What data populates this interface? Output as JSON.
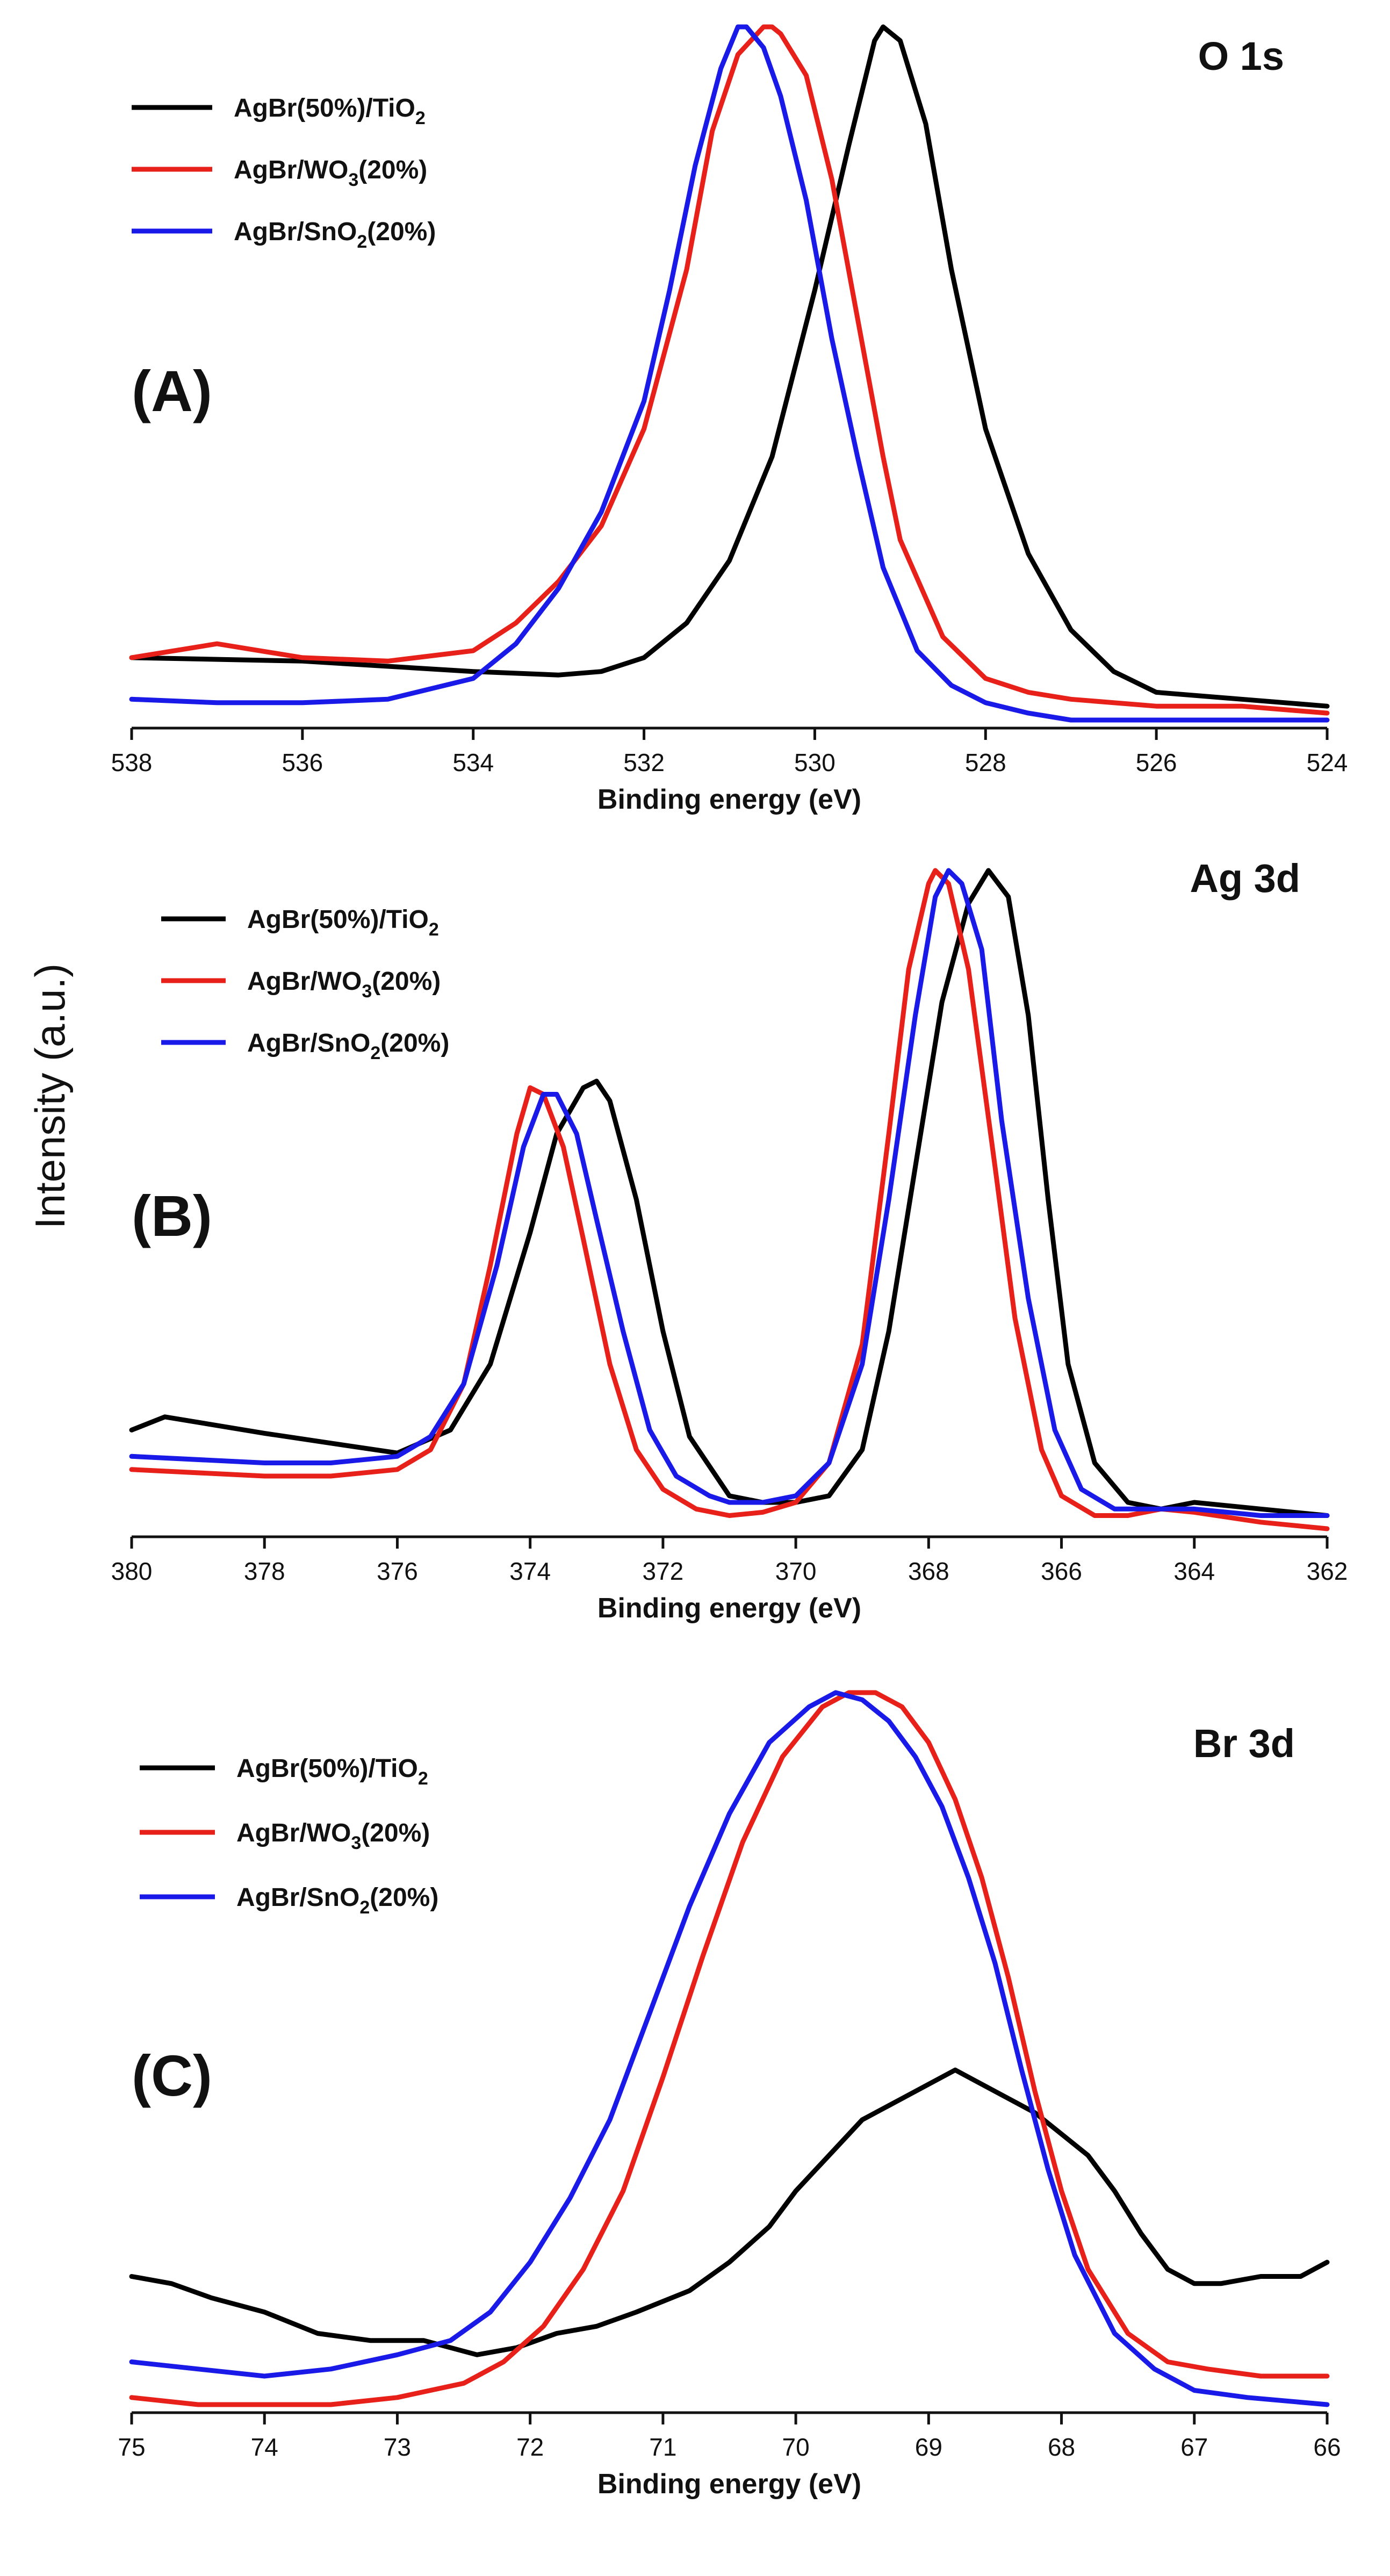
{
  "figure": {
    "ylabel": "Intensity  (a.u.)"
  },
  "chart_data": [
    {
      "type": "line",
      "panel_label": "(A)",
      "title": "O 1s",
      "xlabel": "Binding energy (eV)",
      "ylabel": "Intensity (a.u.)",
      "xlim": [
        538,
        524
      ],
      "x_reversed": true,
      "ylim": [
        0,
        1
      ],
      "xticks": [
        "538",
        "536",
        "534",
        "532",
        "530",
        "528",
        "526",
        "524"
      ],
      "legend_position": "top-left",
      "series": [
        {
          "name": "AgBr(50%)/TiO2",
          "legend_label": "AgBr(50%)/TiO",
          "legend_sub": "2",
          "legend_after": "",
          "color": "#000000",
          "x": [
            538,
            536,
            534,
            533,
            532.5,
            532,
            531.5,
            531,
            530.5,
            530,
            529.6,
            529.3,
            529.2,
            529.0,
            528.7,
            528.4,
            528.0,
            527.5,
            527.0,
            526.5,
            526,
            525,
            524
          ],
          "y": [
            0.09,
            0.085,
            0.07,
            0.065,
            0.07,
            0.09,
            0.14,
            0.23,
            0.38,
            0.62,
            0.83,
            0.98,
            1.0,
            0.98,
            0.86,
            0.65,
            0.42,
            0.24,
            0.13,
            0.07,
            0.04,
            0.03,
            0.02
          ]
        },
        {
          "name": "AgBr/WO3(20%)",
          "legend_label": "AgBr/WO",
          "legend_sub": "3",
          "legend_after": "(20%)",
          "color": "#e8201a",
          "x": [
            538,
            537,
            536,
            535,
            534,
            533.5,
            533,
            532.5,
            532,
            531.5,
            531.2,
            530.9,
            530.6,
            530.5,
            530.4,
            530.1,
            529.8,
            529.5,
            529.2,
            529.0,
            528.5,
            528.0,
            527.5,
            527,
            526,
            525,
            524
          ],
          "y": [
            0.09,
            0.11,
            0.09,
            0.085,
            0.1,
            0.14,
            0.2,
            0.28,
            0.42,
            0.65,
            0.85,
            0.96,
            1.0,
            1.0,
            0.99,
            0.93,
            0.78,
            0.58,
            0.38,
            0.26,
            0.12,
            0.06,
            0.04,
            0.03,
            0.02,
            0.02,
            0.01
          ]
        },
        {
          "name": "AgBr/SnO2(20%)",
          "legend_label": "AgBr/SnO",
          "legend_sub": "2",
          "legend_after": "(20%)",
          "color": "#1a1ae8",
          "x": [
            538,
            537,
            536,
            535,
            534,
            533.5,
            533,
            532.5,
            532,
            531.7,
            531.4,
            531.1,
            530.9,
            530.8,
            530.6,
            530.4,
            530.1,
            529.8,
            529.5,
            529.2,
            528.8,
            528.4,
            528.0,
            527.5,
            527,
            526,
            525,
            524
          ],
          "y": [
            0.03,
            0.025,
            0.025,
            0.03,
            0.06,
            0.11,
            0.19,
            0.3,
            0.46,
            0.62,
            0.8,
            0.94,
            1.0,
            1.0,
            0.97,
            0.9,
            0.75,
            0.55,
            0.38,
            0.22,
            0.1,
            0.05,
            0.025,
            0.01,
            0.0,
            0.0,
            0.0,
            0.0
          ]
        }
      ]
    },
    {
      "type": "line",
      "panel_label": "(B)",
      "title": "Ag 3d",
      "xlabel": "Binding energy (eV)",
      "ylabel": "Intensity (a.u.)",
      "xlim": [
        380,
        362
      ],
      "x_reversed": true,
      "ylim": [
        0,
        1
      ],
      "xticks": [
        "380",
        "378",
        "376",
        "374",
        "372",
        "370",
        "368",
        "366",
        "364",
        "362"
      ],
      "legend_position": "top-left",
      "series": [
        {
          "name": "AgBr(50%)/TiO2",
          "legend_label": "AgBr(50%)/TiO",
          "legend_sub": "2",
          "legend_after": "",
          "color": "#000000",
          "x": [
            380,
            379.5,
            378,
            377,
            376,
            375.2,
            374.6,
            374.0,
            373.6,
            373.2,
            373.0,
            372.8,
            372.4,
            372.0,
            371.6,
            371.0,
            370.5,
            370,
            369.5,
            369,
            368.6,
            368.2,
            367.8,
            367.4,
            367.1,
            366.8,
            366.5,
            366.2,
            365.9,
            365.5,
            365,
            364.5,
            364,
            363,
            362
          ],
          "y": [
            0.15,
            0.17,
            0.145,
            0.13,
            0.115,
            0.15,
            0.25,
            0.45,
            0.6,
            0.67,
            0.68,
            0.65,
            0.5,
            0.3,
            0.14,
            0.05,
            0.04,
            0.04,
            0.05,
            0.12,
            0.3,
            0.55,
            0.8,
            0.95,
            1.0,
            0.96,
            0.78,
            0.5,
            0.25,
            0.1,
            0.04,
            0.03,
            0.04,
            0.03,
            0.02
          ]
        },
        {
          "name": "AgBr/WO3(20%)",
          "legend_label": "AgBr/WO",
          "legend_sub": "3",
          "legend_after": "(20%)",
          "color": "#e8201a",
          "x": [
            380,
            378,
            377,
            376,
            375.5,
            375,
            374.6,
            374.2,
            374.0,
            373.8,
            373.5,
            373.2,
            372.8,
            372.4,
            372,
            371.5,
            371,
            370.5,
            370,
            369.5,
            369.0,
            368.6,
            368.3,
            368.0,
            367.9,
            367.7,
            367.4,
            367.0,
            366.7,
            366.3,
            366,
            365.5,
            365,
            364.5,
            364,
            363,
            362
          ],
          "y": [
            0.09,
            0.08,
            0.08,
            0.09,
            0.12,
            0.22,
            0.4,
            0.6,
            0.67,
            0.66,
            0.58,
            0.44,
            0.25,
            0.12,
            0.06,
            0.03,
            0.02,
            0.025,
            0.04,
            0.1,
            0.28,
            0.6,
            0.85,
            0.98,
            1.0,
            0.98,
            0.85,
            0.55,
            0.32,
            0.12,
            0.05,
            0.02,
            0.02,
            0.03,
            0.025,
            0.01,
            0.0
          ]
        },
        {
          "name": "AgBr/SnO2(20%)",
          "legend_label": "AgBr/SnO",
          "legend_sub": "2",
          "legend_after": "(20%)",
          "color": "#1a1ae8",
          "x": [
            380,
            378,
            377,
            376,
            375.5,
            375,
            374.5,
            374.1,
            373.8,
            373.6,
            373.3,
            373.0,
            372.6,
            372.2,
            371.8,
            371.3,
            371,
            370.5,
            370,
            369.5,
            369.0,
            368.6,
            368.2,
            367.9,
            367.7,
            367.5,
            367.2,
            366.9,
            366.5,
            366.1,
            365.7,
            365.2,
            364.5,
            364,
            363,
            362
          ],
          "y": [
            0.11,
            0.1,
            0.1,
            0.11,
            0.14,
            0.22,
            0.4,
            0.58,
            0.66,
            0.66,
            0.6,
            0.47,
            0.3,
            0.15,
            0.08,
            0.05,
            0.04,
            0.04,
            0.05,
            0.1,
            0.25,
            0.5,
            0.78,
            0.96,
            1.0,
            0.98,
            0.88,
            0.62,
            0.35,
            0.15,
            0.06,
            0.03,
            0.03,
            0.03,
            0.02,
            0.02
          ]
        }
      ]
    },
    {
      "type": "line",
      "panel_label": "(C)",
      "title": "Br 3d",
      "xlabel": "Binding energy (eV)",
      "ylabel": "Intensity (a.u.)",
      "xlim": [
        75,
        66
      ],
      "x_reversed": true,
      "ylim": [
        0,
        1
      ],
      "xticks": [
        "75",
        "74",
        "73",
        "72",
        "71",
        "70",
        "69",
        "68",
        "67",
        "66"
      ],
      "legend_position": "top-left",
      "series": [
        {
          "name": "AgBr(50%)/TiO2",
          "legend_label": "AgBr(50%)/TiO",
          "legend_sub": "2",
          "legend_after": "",
          "color": "#000000",
          "x": [
            75,
            74.7,
            74.4,
            74,
            73.6,
            73.2,
            72.8,
            72.4,
            72.1,
            71.8,
            71.5,
            71.2,
            70.8,
            70.5,
            70.2,
            70.0,
            69.7,
            69.5,
            69.2,
            69.0,
            68.8,
            68.6,
            68.4,
            68.2,
            68.0,
            67.8,
            67.6,
            67.4,
            67.2,
            67.0,
            66.8,
            66.5,
            66.2,
            66
          ],
          "y": [
            0.18,
            0.17,
            0.15,
            0.13,
            0.1,
            0.09,
            0.09,
            0.07,
            0.08,
            0.1,
            0.11,
            0.13,
            0.16,
            0.2,
            0.25,
            0.3,
            0.36,
            0.4,
            0.43,
            0.45,
            0.47,
            0.45,
            0.43,
            0.41,
            0.38,
            0.35,
            0.3,
            0.24,
            0.19,
            0.17,
            0.17,
            0.18,
            0.18,
            0.2
          ]
        },
        {
          "name": "AgBr/WO3(20%)",
          "legend_label": "AgBr/WO",
          "legend_sub": "3",
          "legend_after": "(20%)",
          "color": "#e8201a",
          "x": [
            75,
            74.5,
            74,
            73.5,
            73,
            72.5,
            72.2,
            71.9,
            71.6,
            71.3,
            71.0,
            70.7,
            70.4,
            70.1,
            69.8,
            69.6,
            69.4,
            69.2,
            69.0,
            68.8,
            68.6,
            68.4,
            68.2,
            68.0,
            67.8,
            67.5,
            67.2,
            66.9,
            66.5,
            66
          ],
          "y": [
            0.01,
            0.0,
            0.0,
            0.0,
            0.01,
            0.03,
            0.06,
            0.11,
            0.19,
            0.3,
            0.46,
            0.63,
            0.79,
            0.91,
            0.98,
            1.0,
            1.0,
            0.98,
            0.93,
            0.85,
            0.74,
            0.6,
            0.44,
            0.3,
            0.19,
            0.1,
            0.06,
            0.05,
            0.04,
            0.04
          ]
        },
        {
          "name": "AgBr/SnO2(20%)",
          "legend_label": "AgBr/SnO",
          "legend_sub": "2",
          "legend_after": "(20%)",
          "color": "#1a1ae8",
          "x": [
            75,
            74.5,
            74,
            73.5,
            73,
            72.6,
            72.3,
            72.0,
            71.7,
            71.4,
            71.1,
            70.8,
            70.5,
            70.2,
            69.9,
            69.7,
            69.5,
            69.3,
            69.1,
            68.9,
            68.7,
            68.5,
            68.3,
            68.1,
            67.9,
            67.6,
            67.3,
            67.0,
            66.6,
            66
          ],
          "y": [
            0.06,
            0.05,
            0.04,
            0.05,
            0.07,
            0.09,
            0.13,
            0.2,
            0.29,
            0.4,
            0.55,
            0.7,
            0.83,
            0.93,
            0.98,
            1.0,
            0.99,
            0.96,
            0.91,
            0.84,
            0.74,
            0.62,
            0.47,
            0.33,
            0.21,
            0.1,
            0.05,
            0.02,
            0.01,
            0.0
          ]
        }
      ]
    }
  ]
}
